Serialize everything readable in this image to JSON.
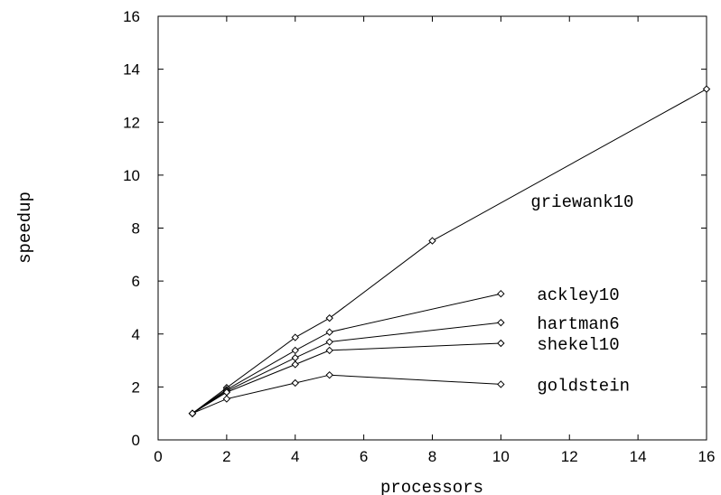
{
  "chart_data": {
    "type": "line",
    "xlabel": "processors",
    "ylabel": "speedup",
    "xlim": [
      0,
      16
    ],
    "ylim": [
      0,
      16
    ],
    "xticks": [
      0,
      2,
      4,
      6,
      8,
      10,
      12,
      14,
      16
    ],
    "yticks": [
      0,
      2,
      4,
      6,
      8,
      10,
      12,
      14,
      16
    ],
    "grid": false,
    "legend": "inline-labels",
    "marker": "diamond",
    "series": [
      {
        "name": "griewank10",
        "x": [
          1,
          2,
          4,
          5,
          8,
          16
        ],
        "y": [
          1.0,
          1.97,
          3.87,
          4.6,
          7.52,
          13.25
        ]
      },
      {
        "name": "ackley10",
        "x": [
          1,
          2,
          4,
          5,
          10
        ],
        "y": [
          1.0,
          1.9,
          3.38,
          4.07,
          5.52
        ]
      },
      {
        "name": "hartman6",
        "x": [
          1,
          2,
          4,
          5,
          10
        ],
        "y": [
          1.0,
          1.85,
          3.1,
          3.7,
          4.43
        ]
      },
      {
        "name": "shekel10",
        "x": [
          1,
          2,
          4,
          5,
          10
        ],
        "y": [
          1.0,
          1.8,
          2.85,
          3.38,
          3.65
        ]
      },
      {
        "name": "goldstein",
        "x": [
          1,
          2,
          4,
          5,
          10
        ],
        "y": [
          1.0,
          1.55,
          2.15,
          2.45,
          2.1
        ]
      }
    ]
  }
}
